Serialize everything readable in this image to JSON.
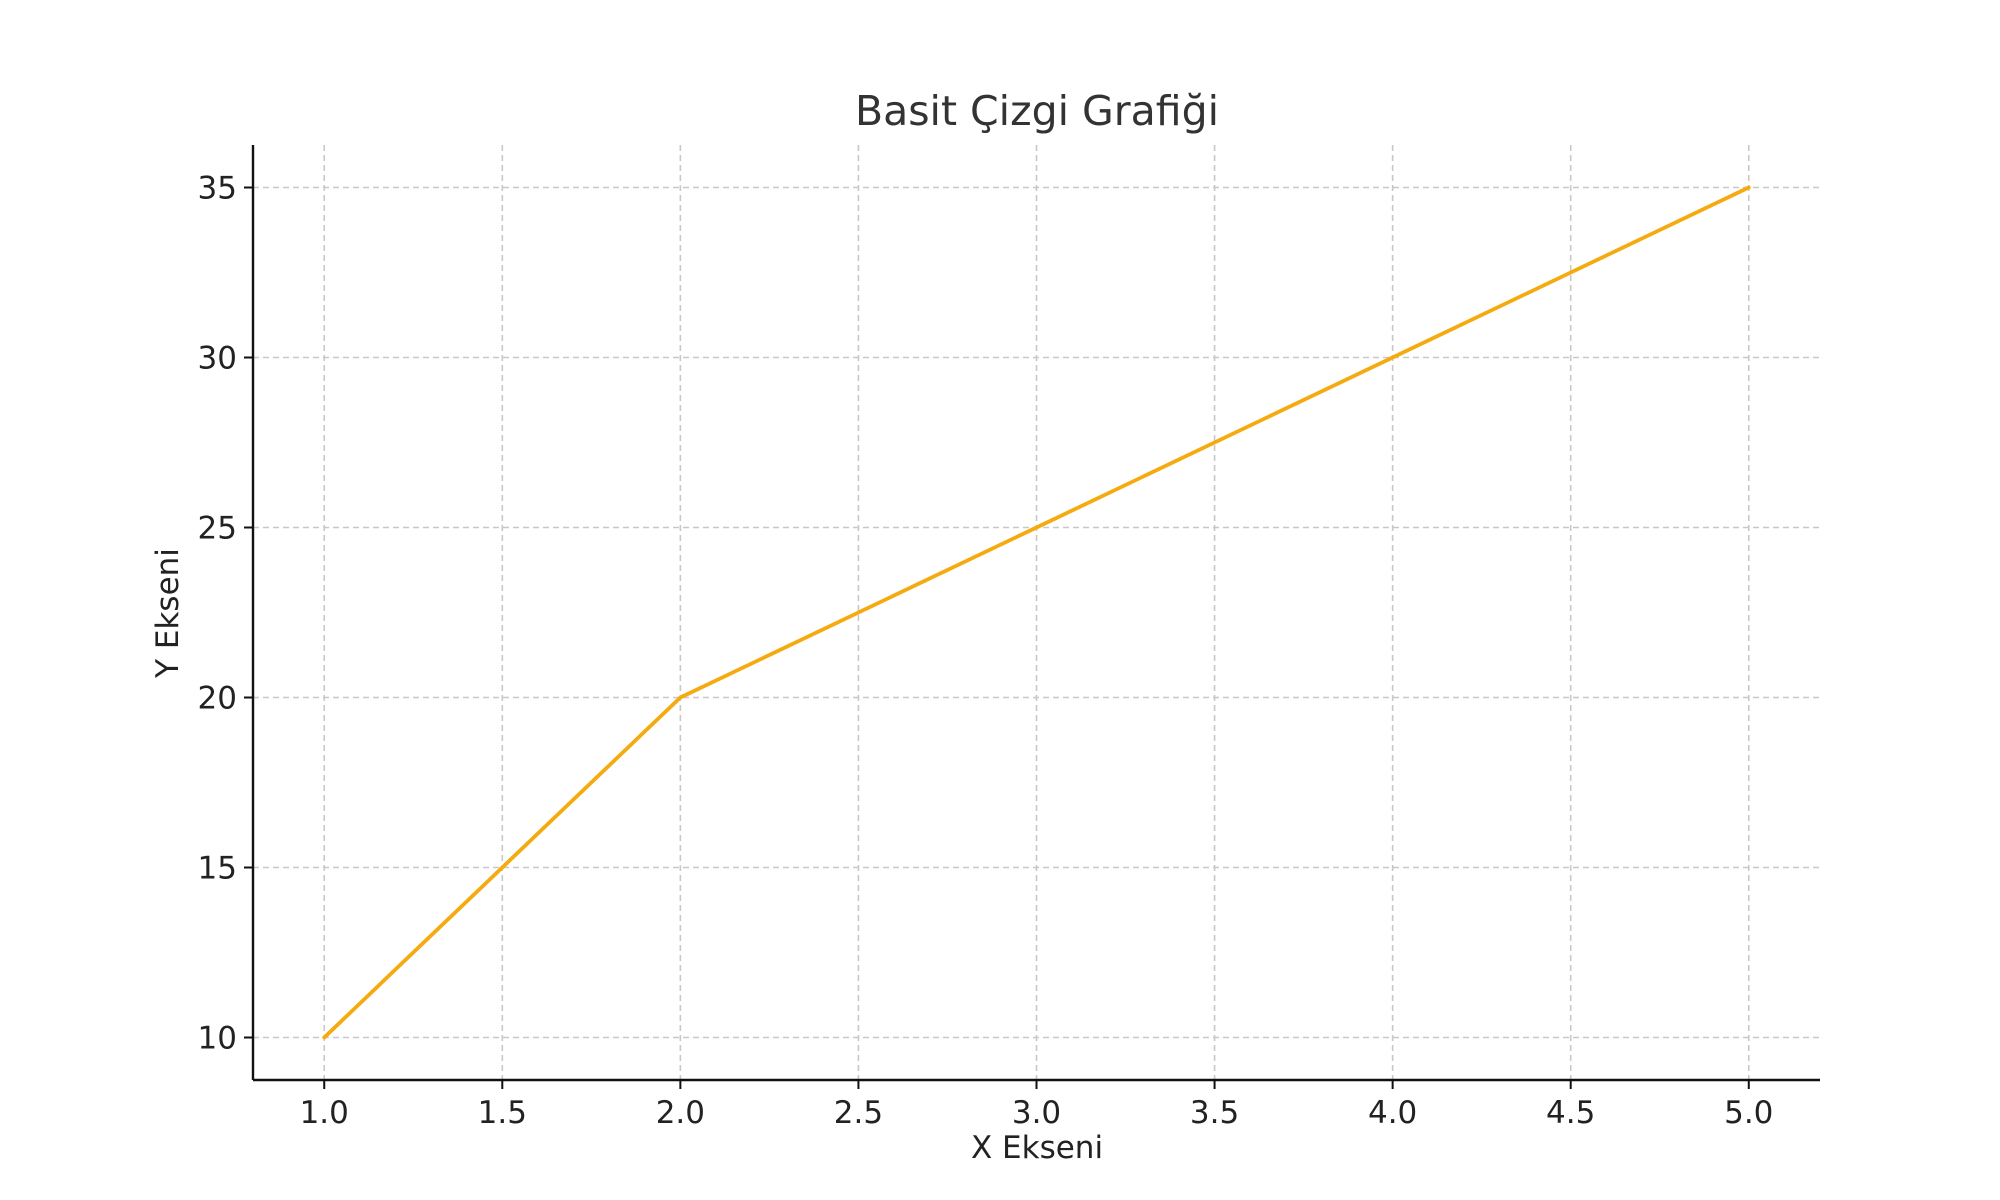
{
  "chart_data": {
    "type": "line",
    "title": "Basit Çizgi Grafiği",
    "xlabel": "X Ekseni",
    "ylabel": "Y Ekseni",
    "x": [
      1,
      2,
      3,
      4,
      5
    ],
    "series": [
      {
        "values": [
          10,
          20,
          25,
          30,
          35
        ],
        "color": "#f5ab0f"
      }
    ],
    "xlim": [
      0.8,
      5.2
    ],
    "ylim": [
      8.75,
      36.25
    ],
    "xticks": [
      1.0,
      1.5,
      2.0,
      2.5,
      3.0,
      3.5,
      4.0,
      4.5,
      5.0
    ],
    "xtick_labels": [
      "1.0",
      "1.5",
      "2.0",
      "2.5",
      "3.0",
      "3.5",
      "4.0",
      "4.5",
      "5.0"
    ],
    "yticks": [
      10,
      15,
      20,
      25,
      30,
      35
    ],
    "ytick_labels": [
      "10",
      "15",
      "20",
      "25",
      "30",
      "35"
    ],
    "grid": true,
    "legend": "none"
  }
}
